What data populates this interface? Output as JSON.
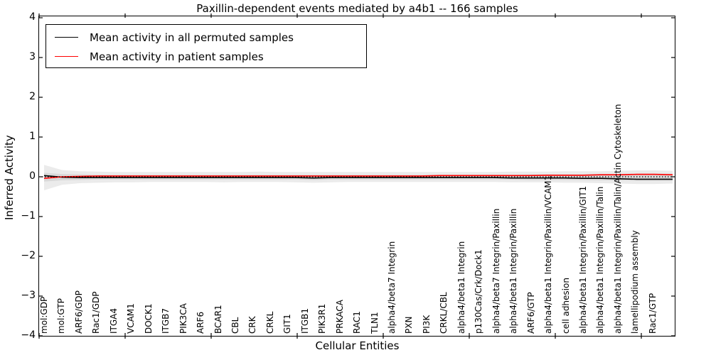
{
  "title": "Paxillin-dependent events mediated by a4b1 -- 166 samples",
  "axes": {
    "xlabel": "Cellular Entities",
    "ylabel": "Inferred Activity",
    "ytick_labels": [
      "4",
      "3",
      "2",
      "1",
      "0",
      "−1",
      "−2",
      "−3",
      "−4"
    ],
    "ytick_values": [
      4,
      3,
      2,
      1,
      0,
      -1,
      -2,
      -3,
      -4
    ]
  },
  "legend": {
    "items": [
      {
        "label": "Mean activity in all permuted samples",
        "color": "#000000"
      },
      {
        "label": "Mean activity in patient samples",
        "color": "#ff0000"
      }
    ]
  },
  "chart_data": {
    "type": "line",
    "title": "Paxillin-dependent events mediated by a4b1 -- 166 samples",
    "xlabel": "Cellular Entities",
    "ylabel": "Inferred Activity",
    "ylim": [
      -4,
      4
    ],
    "grid": false,
    "legend_position": "upper left",
    "x_major_tick_values": [
      0,
      5,
      10,
      15,
      20,
      25,
      30,
      35
    ],
    "baseline": {
      "value": 0,
      "style": "dotted",
      "color": "#000000"
    },
    "categories": [
      "mol:GDP",
      "mol:GTP",
      "ARF6/GDP",
      "Rac1/GDP",
      "ITGA4",
      "VCAM1",
      "DOCK1",
      "ITGB7",
      "PIK3CA",
      "ARF6",
      "BCAR1",
      "CBL",
      "CRK",
      "CRKL",
      "GIT1",
      "ITGB1",
      "PIK3R1",
      "PRKACA",
      "RAC1",
      "TLN1",
      "alpha4/beta7 Integrin",
      "PXN",
      "PI3K",
      "CRKL/CBL",
      "alpha4/beta1 Integrin",
      "p130Cas/Crk/Dock1",
      "alpha4/beta7 Integrin/Paxillin",
      "alpha4/beta1 Integrin/Paxillin",
      "ARF6/GTP",
      "alpha4/beta1 Integrin/Paxillin/VCAM1",
      "cell adhesion",
      "alpha4/beta1 Integrin/Paxillin/GIT1",
      "alpha4/beta1 Integrin/Paxillin/Talin",
      "alpha4/beta1 Integrin/Paxillin/Talin/Actin Cytoskeleton",
      "lamellipodium assembly",
      "Rac1/GTP"
    ],
    "series": [
      {
        "name": "Mean activity in all permuted samples",
        "color": "#000000",
        "style": "solid",
        "values": [
          0.03,
          -0.01,
          -0.02,
          -0.02,
          -0.02,
          -0.02,
          -0.02,
          -0.02,
          -0.02,
          -0.02,
          -0.02,
          -0.02,
          -0.02,
          -0.02,
          -0.02,
          -0.03,
          -0.02,
          -0.02,
          -0.02,
          -0.02,
          -0.02,
          -0.02,
          -0.02,
          -0.02,
          -0.02,
          -0.02,
          -0.03,
          -0.03,
          -0.03,
          -0.03,
          -0.04,
          -0.04,
          -0.05,
          -0.06,
          -0.06,
          -0.06
        ]
      },
      {
        "name": "Mean activity in patient samples",
        "color": "#ff0000",
        "style": "solid",
        "values": [
          -0.04,
          0.0,
          0.01,
          0.02,
          0.02,
          0.02,
          0.02,
          0.02,
          0.02,
          0.02,
          0.02,
          0.02,
          0.02,
          0.02,
          0.02,
          0.02,
          0.02,
          0.02,
          0.02,
          0.02,
          0.02,
          0.02,
          0.03,
          0.03,
          0.03,
          0.03,
          0.03,
          0.03,
          0.04,
          0.04,
          0.04,
          0.05,
          0.05,
          0.06,
          0.06,
          0.05
        ]
      }
    ],
    "bands": [
      {
        "name": "permuted-range-outer",
        "color": "#ebebeb",
        "upper": [
          0.3,
          0.17,
          0.14,
          0.13,
          0.12,
          0.12,
          0.12,
          0.12,
          0.12,
          0.12,
          0.12,
          0.12,
          0.13,
          0.12,
          0.12,
          0.12,
          0.12,
          0.12,
          0.12,
          0.12,
          0.12,
          0.12,
          0.12,
          0.12,
          0.12,
          0.12,
          0.13,
          0.13,
          0.13,
          0.14,
          0.14,
          0.14,
          0.15,
          0.16,
          0.16,
          0.15
        ],
        "lower": [
          -0.34,
          -0.2,
          -0.16,
          -0.15,
          -0.14,
          -0.14,
          -0.13,
          -0.13,
          -0.13,
          -0.13,
          -0.14,
          -0.13,
          -0.13,
          -0.13,
          -0.14,
          -0.15,
          -0.14,
          -0.13,
          -0.13,
          -0.13,
          -0.13,
          -0.13,
          -0.13,
          -0.13,
          -0.13,
          -0.13,
          -0.14,
          -0.14,
          -0.14,
          -0.15,
          -0.15,
          -0.16,
          -0.17,
          -0.18,
          -0.18,
          -0.17
        ]
      },
      {
        "name": "permuted-range-inner",
        "color": "#d9d9d9",
        "upper": [
          0.1,
          0.07,
          0.06,
          0.05,
          0.05,
          0.05,
          0.05,
          0.05,
          0.05,
          0.05,
          0.05,
          0.05,
          0.05,
          0.05,
          0.05,
          0.05,
          0.05,
          0.05,
          0.05,
          0.05,
          0.05,
          0.05,
          0.05,
          0.05,
          0.05,
          0.05,
          0.05,
          0.06,
          0.06,
          0.06,
          0.06,
          0.07,
          0.07,
          0.08,
          0.08,
          0.08
        ],
        "lower": [
          -0.12,
          -0.09,
          -0.08,
          -0.07,
          -0.07,
          -0.07,
          -0.07,
          -0.07,
          -0.07,
          -0.07,
          -0.07,
          -0.07,
          -0.07,
          -0.07,
          -0.07,
          -0.08,
          -0.07,
          -0.07,
          -0.07,
          -0.07,
          -0.07,
          -0.07,
          -0.07,
          -0.07,
          -0.07,
          -0.07,
          -0.07,
          -0.08,
          -0.08,
          -0.08,
          -0.08,
          -0.09,
          -0.09,
          -0.1,
          -0.1,
          -0.1
        ]
      }
    ]
  }
}
